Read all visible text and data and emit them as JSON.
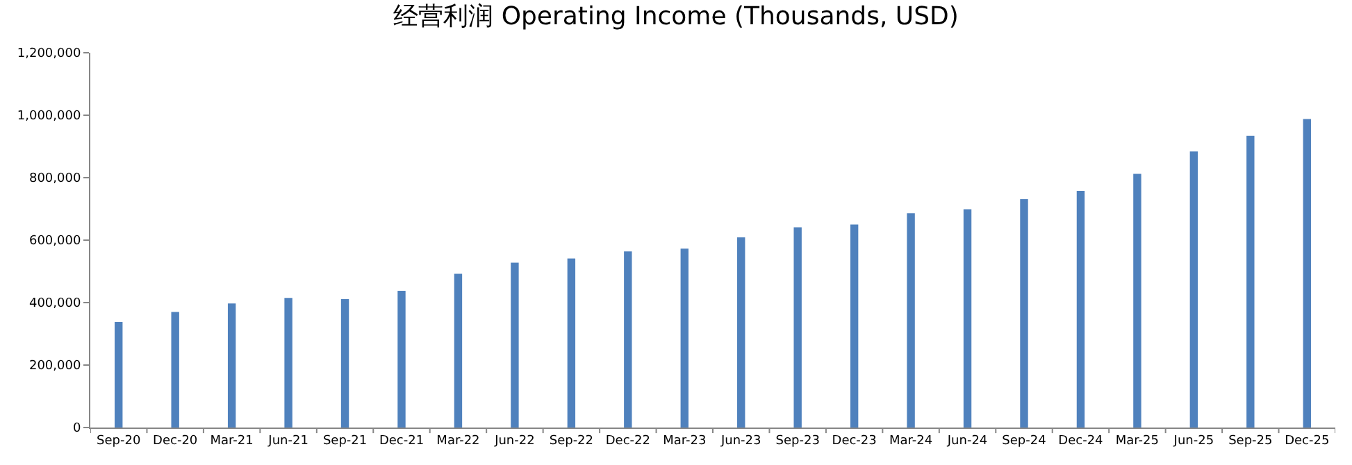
{
  "chart_data": {
    "type": "bar",
    "title": "经营利润 Operating Income (Thousands, USD)",
    "categories": [
      "Sep-20",
      "Dec-20",
      "Mar-21",
      "Jun-21",
      "Sep-21",
      "Dec-21",
      "Mar-22",
      "Jun-22",
      "Sep-22",
      "Dec-22",
      "Mar-23",
      "Jun-23",
      "Sep-23",
      "Dec-23",
      "Mar-24",
      "Jun-24",
      "Sep-24",
      "Dec-24",
      "Mar-25",
      "Jun-25",
      "Sep-25",
      "Dec-25"
    ],
    "values": [
      338000,
      370000,
      397000,
      415000,
      411000,
      438000,
      492000,
      528000,
      541000,
      564000,
      573000,
      609000,
      641000,
      650000,
      686000,
      699000,
      731000,
      758000,
      812000,
      884000,
      934000,
      988000
    ],
    "color": "#4f81bd",
    "ylim": [
      0,
      1200000
    ],
    "yticks": [
      {
        "value": 0,
        "label": "0"
      },
      {
        "value": 200000,
        "label": "200,000"
      },
      {
        "value": 400000,
        "label": "400,000"
      },
      {
        "value": 600000,
        "label": "600,000"
      },
      {
        "value": 800000,
        "label": "800,000"
      },
      {
        "value": 1000000,
        "label": "1,000,000"
      },
      {
        "value": 1200000,
        "label": "1,200,000"
      }
    ],
    "grid": false,
    "legend": false
  }
}
